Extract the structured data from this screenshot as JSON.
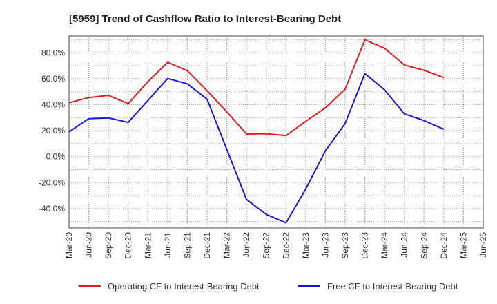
{
  "chart_data": {
    "type": "line",
    "title": "[5959]  Trend of Cashflow Ratio to Interest-Bearing Debt",
    "xlabel": "",
    "ylabel": "",
    "categories": [
      "Mar-20",
      "Jun-20",
      "Sep-20",
      "Dec-20",
      "Mar-21",
      "Jun-21",
      "Sep-21",
      "Dec-21",
      "Mar-22",
      "Jun-22",
      "Sep-22",
      "Dec-22",
      "Mar-23",
      "Jun-23",
      "Sep-23",
      "Dec-23",
      "Mar-24",
      "Jun-24",
      "Sep-24",
      "Dec-24",
      "Mar-25",
      "Jun-25"
    ],
    "yticks": [
      "80.0%",
      "60.0%",
      "40.0%",
      "20.0%",
      "0.0%",
      "-20.0%",
      "-40.0%"
    ],
    "ylim": [
      -55,
      93
    ],
    "grid": true,
    "legend_position": "bottom",
    "series": [
      {
        "name": "Operating CF to Interest-Bearing Debt",
        "color": "#e31a1c",
        "values": [
          41.5,
          45.5,
          47.2,
          40.8,
          57.8,
          72.7,
          66.2,
          50.8,
          34.5,
          17.4,
          17.6,
          16.2,
          27.2,
          37.6,
          52.0,
          90.0,
          83.5,
          70.6,
          66.6,
          60.9,
          null,
          null
        ]
      },
      {
        "name": "Free CF to Interest-Bearing Debt",
        "color": "#1515d8",
        "values": [
          19.1,
          29.3,
          29.8,
          26.4,
          43.3,
          60.2,
          56.1,
          44.3,
          5.5,
          -33.0,
          -44.5,
          -51.0,
          -25.0,
          4.5,
          25.5,
          64.0,
          51.5,
          33.0,
          27.8,
          21.1,
          null,
          null
        ]
      }
    ]
  }
}
